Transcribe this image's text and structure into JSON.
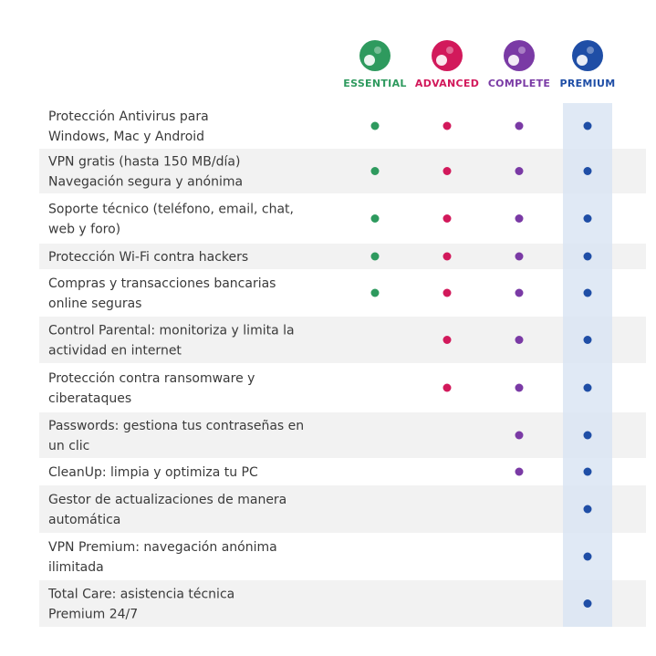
{
  "plans": [
    {
      "name": "ESSENTIAL",
      "color": "#2e9a5e"
    },
    {
      "name": "ADVANCED",
      "color": "#d2195b"
    },
    {
      "name": "COMPLETE",
      "color": "#7a3aa5"
    },
    {
      "name": "PREMIUM",
      "color": "#1f4ea6"
    }
  ],
  "highlight_plan": 3,
  "rows": [
    {
      "text": [
        "Protección Antivirus para",
        "Windows, Mac y Android"
      ],
      "included": [
        true,
        true,
        true,
        true
      ]
    },
    {
      "text": [
        "VPN gratis (hasta 150 MB/día)",
        "Navegación segura y anónima"
      ],
      "included": [
        true,
        true,
        true,
        true
      ]
    },
    {
      "text": [
        "Soporte técnico (teléfono, email, chat,",
        "web y foro)"
      ],
      "included": [
        true,
        true,
        true,
        true
      ]
    },
    {
      "text": [
        "Protección Wi-Fi contra hackers"
      ],
      "included": [
        true,
        true,
        true,
        true
      ]
    },
    {
      "text": [
        "Compras y transacciones bancarias",
        "online seguras"
      ],
      "included": [
        true,
        true,
        true,
        true
      ]
    },
    {
      "text": [
        "Control Parental: monitoriza y limita la",
        "actividad en internet"
      ],
      "included": [
        false,
        true,
        true,
        true
      ]
    },
    {
      "text": [
        "Protección contra ransomware y",
        "ciberataques"
      ],
      "included": [
        false,
        true,
        true,
        true
      ]
    },
    {
      "text": [
        "Passwords: gestiona tus contraseñas en",
        "un clic"
      ],
      "included": [
        false,
        false,
        true,
        true
      ]
    },
    {
      "text": [
        "CleanUp: limpia y optimiza tu PC"
      ],
      "included": [
        false,
        false,
        true,
        true
      ]
    },
    {
      "text": [
        "Gestor de actualizaciones de manera",
        "automática"
      ],
      "included": [
        false,
        false,
        false,
        true
      ]
    },
    {
      "text": [
        "VPN Premium: navegación anónima",
        "ilimitada"
      ],
      "included": [
        false,
        false,
        false,
        true
      ]
    },
    {
      "text": [
        "Total Care: asistencia técnica",
        "Premium 24/7"
      ],
      "included": [
        false,
        false,
        false,
        true
      ]
    }
  ]
}
